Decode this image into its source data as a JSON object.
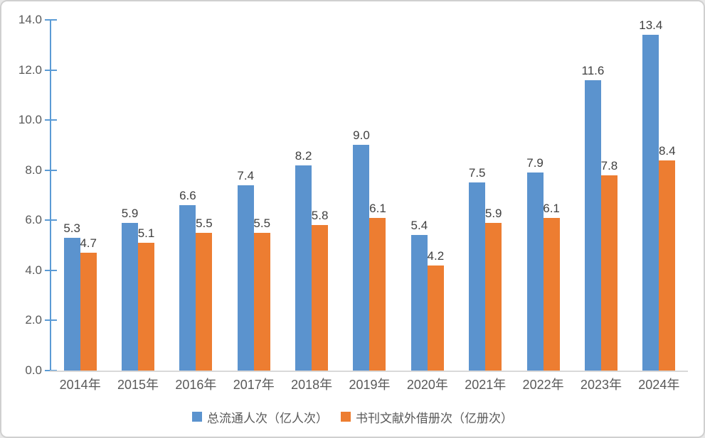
{
  "chart_data": {
    "type": "bar",
    "title": "",
    "xlabel": "",
    "ylabel": "",
    "categories": [
      "2014年",
      "2015年",
      "2016年",
      "2017年",
      "2018年",
      "2019年",
      "2020年",
      "2021年",
      "2022年",
      "2023年",
      "2024年"
    ],
    "series": [
      {
        "name": "总流通人次（亿人次）",
        "color": "#5B93CE",
        "values": [
          5.3,
          5.9,
          6.6,
          7.4,
          8.2,
          9.0,
          5.4,
          7.5,
          7.9,
          11.6,
          13.4
        ]
      },
      {
        "name": "书刊文献外借册次（亿册次）",
        "color": "#ED7D31",
        "values": [
          4.7,
          5.1,
          5.5,
          5.5,
          5.8,
          6.1,
          4.2,
          5.9,
          6.1,
          7.8,
          8.4
        ]
      }
    ],
    "value_label_decimals": 1,
    "ylim": [
      0,
      14
    ],
    "ytick_step": 2,
    "ytick_labels": [
      "0.0",
      "2.0",
      "4.0",
      "6.0",
      "8.0",
      "10.0",
      "12.0",
      "14.0"
    ],
    "grid": false,
    "legend_position": "bottom"
  },
  "colors": {
    "y_axis_line": "#5B9BD5",
    "x_axis_line": "#D9D9D9",
    "tick_label": "#595959",
    "data_label": "#404040",
    "frame_border": "#D0D0D0",
    "background": "#FFFFFF"
  }
}
